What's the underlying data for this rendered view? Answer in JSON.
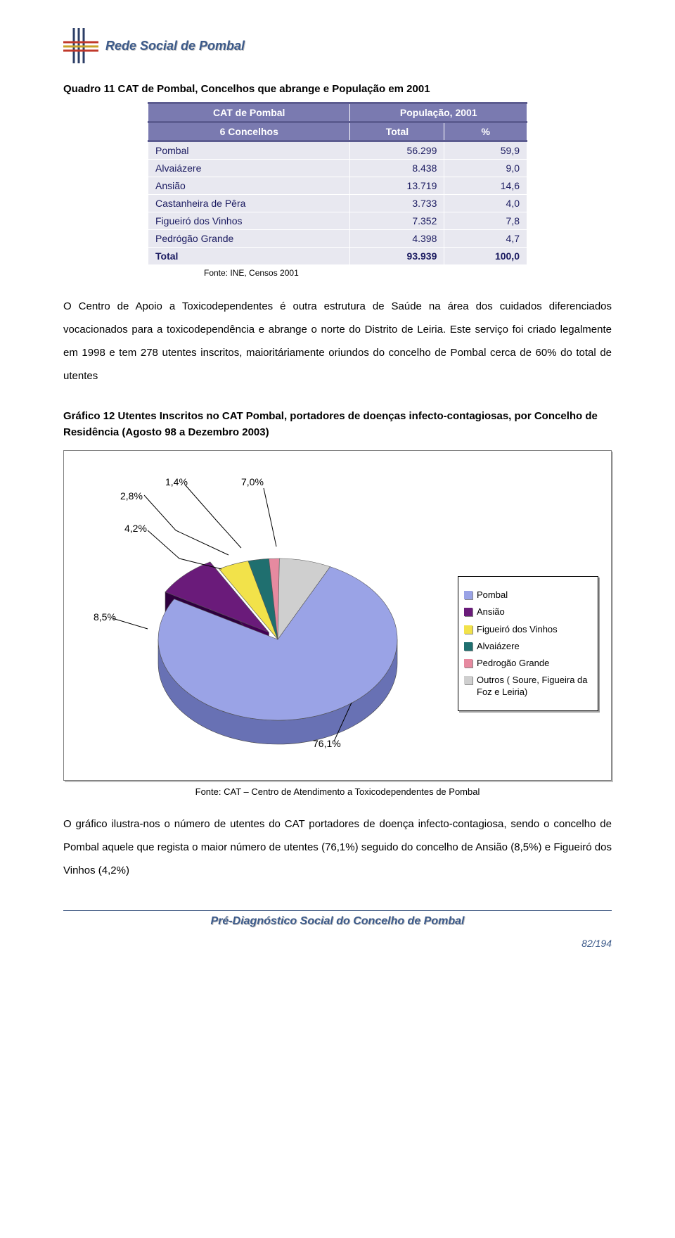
{
  "header": {
    "title": "Rede Social de Pombal",
    "logo_colors": {
      "red": "#c0392b",
      "gold": "#c9a227",
      "blue": "#2c3e66"
    }
  },
  "quadro": {
    "title": "Quadro 11 CAT de Pombal, Concelhos que abrange e População em 2001",
    "col1_header": "CAT de Pombal",
    "col2_header": "População, 2001",
    "subheader_left": "6 Concelhos",
    "subheader_mid": "Total",
    "subheader_right": "%",
    "rows": [
      {
        "label": "Pombal",
        "val": "56.299",
        "pct": "59,9"
      },
      {
        "label": "Alvaiázere",
        "val": "8.438",
        "pct": "9,0"
      },
      {
        "label": "Ansião",
        "val": "13.719",
        "pct": "14,6"
      },
      {
        "label": "Castanheira de Pêra",
        "val": "3.733",
        "pct": "4,0"
      },
      {
        "label": "Figueiró dos Vinhos",
        "val": "7.352",
        "pct": "7,8"
      },
      {
        "label": "Pedrógão Grande",
        "val": "4.398",
        "pct": "4,7"
      }
    ],
    "total": {
      "label": "Total",
      "val": "93.939",
      "pct": "100,0"
    },
    "fonte": "Fonte: INE, Censos 2001",
    "header_bg": "#7a7ab0",
    "header_border": "#5c5c90",
    "cell_bg": "#e8e8f0",
    "cell_text": "#1a1a60"
  },
  "paragraph1": "O Centro de Apoio a Toxicodependentes é outra estrutura de Saúde na área dos cuidados diferenciados vocacionados para a toxicodependência e abrange o norte do Distrito de Leiria. Este serviço foi criado legalmente em 1998 e tem 278 utentes inscritos, maioritáriamente oriundos do concelho de Pombal cerca de 60% do total de utentes",
  "grafico": {
    "title": "Gráfico 12 Utentes Inscritos no CAT Pombal, portadores de doenças infecto-contagiosas, por Concelho de Residência (Agosto 98 a Dezembro 2003)",
    "type": "pie-3d",
    "callouts": {
      "c1": "1,4%",
      "c2": "2,8%",
      "c3": "4,2%",
      "c4": "7,0%",
      "c5": "8,5%",
      "c6": "76,1%"
    },
    "slices": [
      {
        "label": "Pombal",
        "pct": 76.1,
        "color": "#9aa3e6"
      },
      {
        "label": "Ansião",
        "pct": 8.5,
        "color": "#6a1b7a"
      },
      {
        "label": "Figueiró dos Vinhos",
        "pct": 4.2,
        "color": "#f2e24a"
      },
      {
        "label": "Alvaiázere",
        "pct": 2.8,
        "color": "#1f6f6f"
      },
      {
        "label": "Pedrogão Grande",
        "pct": 1.4,
        "color": "#e68aa0"
      },
      {
        "label": "Outros ( Soure, Figueira da Foz e Leiria)",
        "pct": 7.0,
        "color": "#cfcfcf"
      }
    ],
    "fonte": "Fonte: CAT – Centro de Atendimento a Toxicodependentes de Pombal",
    "chart_bg": "#ffffff",
    "chart_border": "#808080"
  },
  "paragraph2": "O gráfico ilustra-nos o número de utentes do CAT portadores de doença infecto-contagiosa, sendo o concelho de Pombal aquele que regista o maior número de utentes (76,1%) seguido do concelho de Ansião (8,5%) e Figueiró dos Vinhos (4,2%)",
  "footer": {
    "title": "Pré-Diagnóstico Social do Concelho de Pombal",
    "page": "82/194",
    "line_color": "#4a628a",
    "text_color": "#3c5a8a"
  }
}
